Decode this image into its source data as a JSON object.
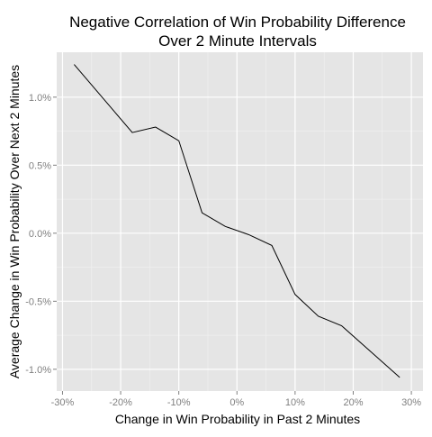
{
  "colors": {
    "panel_background": "#e5e5e5",
    "major_grid": "#ffffff",
    "minor_grid": "#f2f2f2",
    "line": "#000000",
    "tick_label": "#7f7f7f",
    "tick_mark": "#7f7f7f"
  },
  "chart_data": {
    "type": "line",
    "title_lines": [
      "Negative Correlation of Win Probability Difference",
      "Over 2 Minute Intervals"
    ],
    "xlabel": "Change in Win Probability in Past 2 Minutes",
    "ylabel": "Average Change in Win Probability Over Next 2 Minutes",
    "xlim": [
      -0.31,
      0.32
    ],
    "ylim": [
      -0.0116,
      0.0133
    ],
    "x_ticks": [
      {
        "value": -0.3,
        "label": "-30%"
      },
      {
        "value": -0.2,
        "label": "-20%"
      },
      {
        "value": -0.1,
        "label": "-10%"
      },
      {
        "value": 0.0,
        "label": "0%"
      },
      {
        "value": 0.1,
        "label": "10%"
      },
      {
        "value": 0.2,
        "label": "20%"
      },
      {
        "value": 0.3,
        "label": "30%"
      }
    ],
    "y_ticks": [
      {
        "value": -0.01,
        "label": "-1.0%"
      },
      {
        "value": -0.005,
        "label": "-0.5%"
      },
      {
        "value": 0.0,
        "label": "0.0%"
      },
      {
        "value": 0.005,
        "label": "0.5%"
      },
      {
        "value": 0.01,
        "label": "1.0%"
      }
    ],
    "grid": true,
    "legend": "none",
    "series": [
      {
        "x": [
          -0.28,
          -0.18,
          -0.14,
          -0.1,
          -0.06,
          -0.02,
          0.02,
          0.06,
          0.1,
          0.14,
          0.18,
          0.28
        ],
        "y": [
          0.0124,
          0.0074,
          0.0078,
          0.0068,
          0.0015,
          0.0005,
          -0.0001,
          -0.0009,
          -0.0045,
          -0.0061,
          -0.0068,
          -0.0106
        ]
      }
    ]
  }
}
